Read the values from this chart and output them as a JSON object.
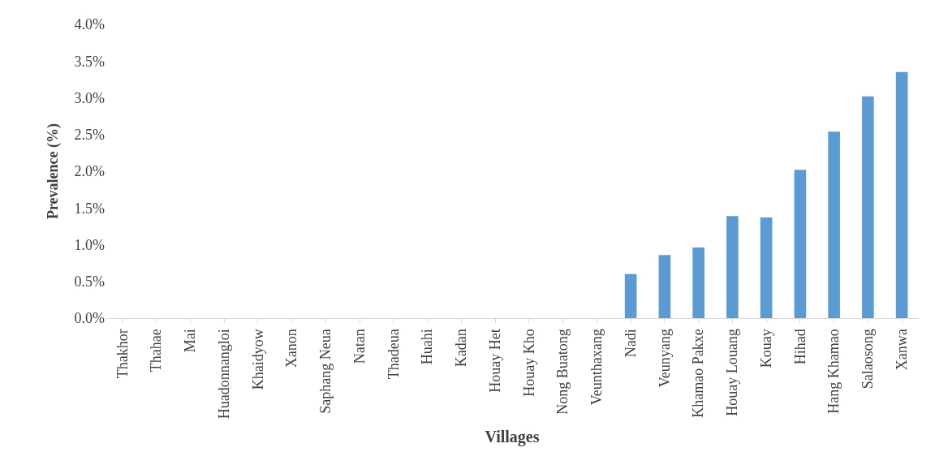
{
  "chart_data": {
    "type": "bar",
    "xlabel": "Villages",
    "ylabel": "Prevalence (%)",
    "categories": [
      "Thakhor",
      "Thahae",
      "Mai",
      "Huadonnangloi",
      "Khaidyow",
      "Xanon",
      "Saphang Neua",
      "Natan",
      "Thadeua",
      "Huahi",
      "Kadan",
      "Houay Het",
      "Houay Kho",
      "Nong Buatong",
      "Veunthaxang",
      "Nadi",
      "Veunyang",
      "Khamao Pakxe",
      "Houay Louang",
      "Kouay",
      "Hihad",
      "Hang Khamao",
      "Salaosong",
      "Xanwa"
    ],
    "values": [
      0,
      0,
      0,
      0,
      0,
      0,
      0,
      0,
      0,
      0,
      0,
      0,
      0,
      0,
      0,
      0.6,
      0.86,
      0.96,
      1.39,
      1.37,
      2.02,
      2.54,
      3.02,
      3.35
    ],
    "color": "#5b9bd5",
    "ylim": [
      0,
      4
    ],
    "yticks": [
      {
        "value": 0,
        "label": "0.0%"
      },
      {
        "value": 0.5,
        "label": "0.5%"
      },
      {
        "value": 1,
        "label": "1.0%"
      },
      {
        "value": 1.5,
        "label": "1.5%"
      },
      {
        "value": 2,
        "label": "2.0%"
      },
      {
        "value": 2.5,
        "label": "2.5%"
      },
      {
        "value": 3,
        "label": "3.0%"
      },
      {
        "value": 3.5,
        "label": "3.5%"
      },
      {
        "value": 4,
        "label": "4.0%"
      }
    ],
    "legend": false
  }
}
